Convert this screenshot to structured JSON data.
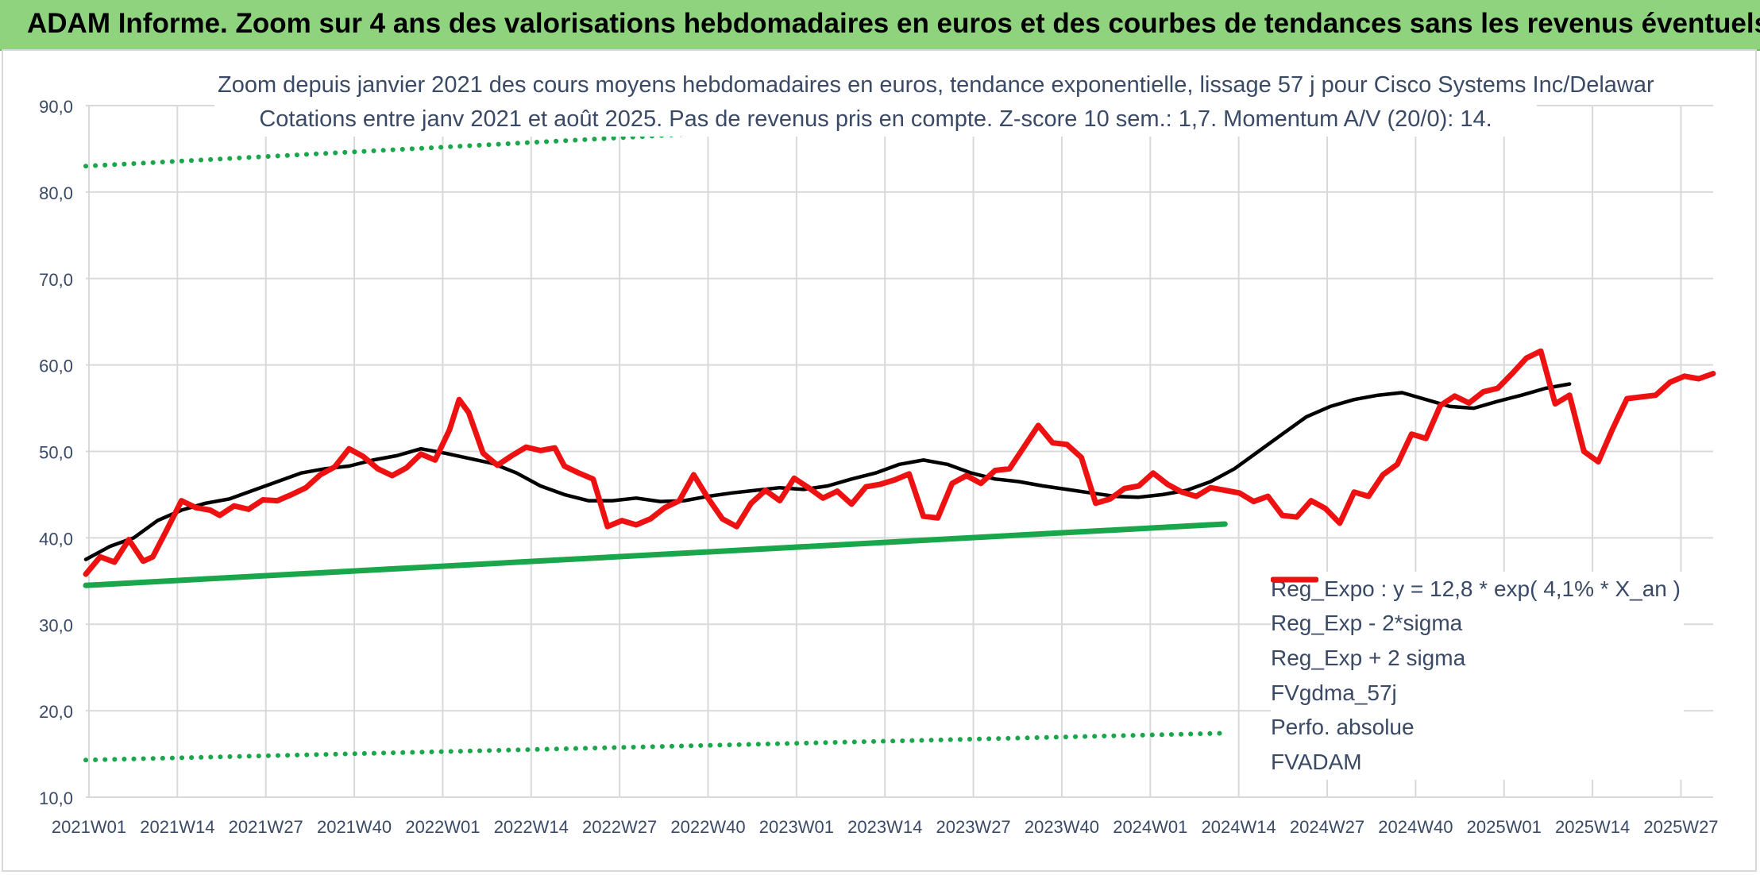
{
  "header": {
    "title": "ADAM Informe. Zoom sur 4 ans des valorisations hebdomadaires en euros et des courbes de tendances sans les revenus éventuels"
  },
  "chart_data": {
    "type": "line",
    "title_line1": "Zoom depuis janvier 2021 des cours moyens hebdomadaires en euros, tendance exponentielle, lissage 57 j pour Cisco Systems Inc/Delawar",
    "title_line2": "Cotations entre janv 2021 et août 2025. Pas de revenus pris en compte. Z-score 10 sem.: 1,7. Momentum A/V (20/0): 14.",
    "ylim": [
      10,
      90
    ],
    "y_ticks": [
      "10,0",
      "20,0",
      "30,0",
      "40,0",
      "50,0",
      "60,0",
      "70,0",
      "80,0",
      "90,0"
    ],
    "x_tick_labels": [
      "2021W01",
      "2021W14",
      "2021W27",
      "2021W40",
      "2022W01",
      "2022W14",
      "2022W27",
      "2022W40",
      "2023W01",
      "2023W14",
      "2023W27",
      "2023W40",
      "2024W01",
      "2024W14",
      "2024W27",
      "2024W40",
      "2025W01",
      "2025W14",
      "2025W27"
    ],
    "legend_position": "bottom-right",
    "grid": true,
    "colors": {
      "reg": "#1aa64a",
      "fvgdma": "#000000",
      "fvadam": "#ee1111",
      "perfo": "#ee1111",
      "grid": "#d9d9d9"
    },
    "series": [
      {
        "name": "Reg_Expo : y = 12,8 * exp( 4,1% *  X_an )",
        "style": "solid-thick",
        "color": "#1aa64a",
        "points": [
          [
            0,
            34.5
          ],
          [
            238,
            41.6
          ]
        ]
      },
      {
        "name": "Reg_Exp - 2*sigma",
        "style": "dotted",
        "color": "#1aa64a",
        "points": [
          [
            0,
            14.3
          ],
          [
            238,
            17.4
          ]
        ]
      },
      {
        "name": "Reg_Exp + 2 sigma",
        "style": "dotted",
        "color": "#1aa64a",
        "points": [
          [
            0,
            83.0
          ],
          [
            238,
            90.0
          ]
        ]
      },
      {
        "name": "FVgdma_57j",
        "style": "solid",
        "color": "#000000",
        "points": [
          [
            0,
            37.5
          ],
          [
            5,
            39
          ],
          [
            10,
            40
          ],
          [
            15,
            42
          ],
          [
            20,
            43.2
          ],
          [
            25,
            44
          ],
          [
            30,
            44.5
          ],
          [
            35,
            45.5
          ],
          [
            40,
            46.5
          ],
          [
            45,
            47.5
          ],
          [
            50,
            48
          ],
          [
            55,
            48.3
          ],
          [
            60,
            49
          ],
          [
            65,
            49.5
          ],
          [
            70,
            50.3
          ],
          [
            75,
            49.8
          ],
          [
            80,
            49.2
          ],
          [
            85,
            48.6
          ],
          [
            90,
            47.5
          ],
          [
            95,
            46
          ],
          [
            100,
            45
          ],
          [
            105,
            44.3
          ],
          [
            110,
            44.3
          ],
          [
            115,
            44.6
          ],
          [
            120,
            44.2
          ],
          [
            125,
            44.3
          ],
          [
            130,
            44.8
          ],
          [
            135,
            45.2
          ],
          [
            140,
            45.5
          ],
          [
            145,
            45.8
          ],
          [
            150,
            45.6
          ],
          [
            155,
            46
          ],
          [
            160,
            46.8
          ],
          [
            165,
            47.5
          ],
          [
            170,
            48.5
          ],
          [
            175,
            49
          ],
          [
            180,
            48.5
          ],
          [
            185,
            47.5
          ],
          [
            190,
            46.8
          ],
          [
            195,
            46.5
          ],
          [
            200,
            46
          ],
          [
            205,
            45.6
          ],
          [
            210,
            45.2
          ],
          [
            215,
            44.8
          ],
          [
            220,
            44.7
          ],
          [
            225,
            45
          ],
          [
            230,
            45.5
          ],
          [
            235,
            46.5
          ],
          [
            240,
            48
          ],
          [
            245,
            50
          ],
          [
            250,
            52
          ],
          [
            255,
            54
          ],
          [
            260,
            55.2
          ],
          [
            265,
            56
          ],
          [
            270,
            56.5
          ],
          [
            275,
            56.8
          ],
          [
            280,
            56
          ],
          [
            285,
            55.2
          ],
          [
            290,
            55
          ],
          [
            295,
            55.8
          ],
          [
            300,
            56.5
          ],
          [
            305,
            57.3
          ],
          [
            310,
            57.8
          ]
        ]
      },
      {
        "name": "FVADAM",
        "style": "solid-thick",
        "color": "#ee1111",
        "points": [
          [
            0,
            35.8
          ],
          [
            3,
            37.8
          ],
          [
            6,
            37.2
          ],
          [
            9,
            39.8
          ],
          [
            12,
            37.3
          ],
          [
            14,
            37.8
          ],
          [
            17,
            41
          ],
          [
            20,
            44.3
          ],
          [
            23,
            43.5
          ],
          [
            26,
            43.2
          ],
          [
            28,
            42.6
          ],
          [
            31,
            43.7
          ],
          [
            34,
            43.3
          ],
          [
            37,
            44.4
          ],
          [
            40,
            44.3
          ],
          [
            43,
            45
          ],
          [
            46,
            45.8
          ],
          [
            49,
            47.3
          ],
          [
            52,
            48.2
          ],
          [
            55,
            50.3
          ],
          [
            58,
            49.4
          ],
          [
            61,
            48
          ],
          [
            64,
            47.2
          ],
          [
            67,
            48.1
          ],
          [
            70,
            49.7
          ],
          [
            73,
            49
          ],
          [
            76,
            52.5
          ],
          [
            78,
            56
          ],
          [
            80,
            54.5
          ],
          [
            83,
            49.8
          ],
          [
            86,
            48.4
          ],
          [
            89,
            49.5
          ],
          [
            92,
            50.5
          ],
          [
            95,
            50.1
          ],
          [
            98,
            50.4
          ],
          [
            100,
            48.3
          ],
          [
            103,
            47.5
          ],
          [
            106,
            46.8
          ],
          [
            109,
            41.3
          ],
          [
            112,
            42
          ],
          [
            115,
            41.5
          ],
          [
            118,
            42.2
          ],
          [
            121,
            43.5
          ],
          [
            124,
            44.3
          ],
          [
            127,
            47.3
          ],
          [
            130,
            44.6
          ],
          [
            133,
            42.2
          ],
          [
            136,
            41.3
          ],
          [
            139,
            44
          ],
          [
            142,
            45.5
          ],
          [
            145,
            44.3
          ],
          [
            148,
            46.9
          ],
          [
            151,
            45.8
          ],
          [
            154,
            44.6
          ],
          [
            157,
            45.4
          ],
          [
            160,
            43.9
          ],
          [
            163,
            45.9
          ],
          [
            166,
            46.2
          ],
          [
            169,
            46.7
          ],
          [
            172,
            47.4
          ],
          [
            175,
            42.5
          ],
          [
            178,
            42.3
          ],
          [
            181,
            46.3
          ],
          [
            184,
            47.2
          ],
          [
            187,
            46.3
          ],
          [
            190,
            47.8
          ],
          [
            193,
            48
          ],
          [
            196,
            50.5
          ],
          [
            199,
            53
          ],
          [
            202,
            51
          ],
          [
            205,
            50.8
          ],
          [
            208,
            49.3
          ],
          [
            211,
            44
          ],
          [
            214,
            44.5
          ],
          [
            217,
            45.7
          ],
          [
            220,
            46
          ],
          [
            223,
            47.5
          ],
          [
            226,
            46.2
          ],
          [
            229,
            45.3
          ],
          [
            232,
            44.8
          ],
          [
            235,
            45.8
          ],
          [
            238,
            45.5
          ],
          [
            241,
            45.2
          ],
          [
            244,
            44.2
          ],
          [
            247,
            44.8
          ],
          [
            250,
            42.6
          ],
          [
            253,
            42.4
          ],
          [
            256,
            44.3
          ],
          [
            259,
            43.4
          ],
          [
            262,
            41.7
          ],
          [
            265,
            45.3
          ],
          [
            268,
            44.8
          ],
          [
            271,
            47.3
          ],
          [
            274,
            48.5
          ],
          [
            277,
            52
          ],
          [
            280,
            51.5
          ],
          [
            283,
            55.3
          ],
          [
            286,
            56.4
          ],
          [
            289,
            55.6
          ],
          [
            292,
            56.9
          ],
          [
            295,
            57.3
          ],
          [
            298,
            59
          ],
          [
            301,
            60.8
          ],
          [
            304,
            61.6
          ],
          [
            307,
            55.5
          ],
          [
            310,
            56.5
          ],
          [
            313,
            50
          ],
          [
            316,
            48.8
          ],
          [
            319,
            52.6
          ],
          [
            322,
            56.1
          ],
          [
            325,
            56.3
          ],
          [
            328,
            56.5
          ],
          [
            331,
            58
          ],
          [
            334,
            58.7
          ],
          [
            337,
            58.4
          ],
          [
            340,
            59
          ]
        ]
      }
    ]
  }
}
